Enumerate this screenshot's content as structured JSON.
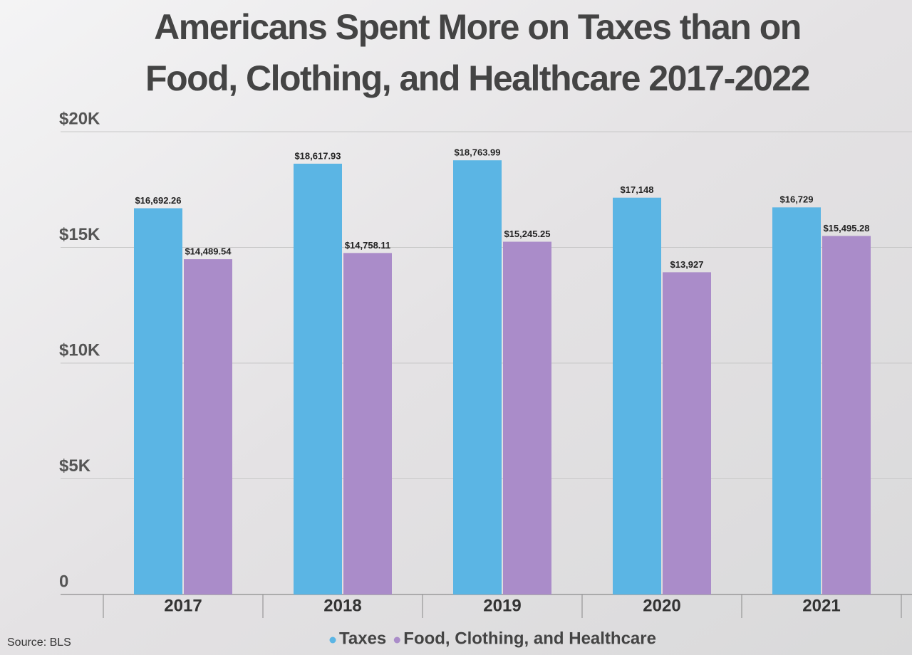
{
  "chart_data": {
    "type": "bar",
    "title": "Americans Spent More on Taxes than on",
    "subtitle": "Food, Clothing, and Healthcare 2017-2022",
    "categories": [
      "2017",
      "2018",
      "2019",
      "2020",
      "2021"
    ],
    "series": [
      {
        "name": "Taxes",
        "color": "#5bb5e4",
        "values": [
          16692.26,
          18617.93,
          18763.99,
          17148,
          16729
        ],
        "value_labels": [
          "$16,692.26",
          "$18,617.93",
          "$18,763.99",
          "$17,148",
          "$16,729"
        ]
      },
      {
        "name": "Food, Clothing, and Healthcare",
        "color": "#aa8cc9",
        "values": [
          14489.54,
          14758.11,
          15245.25,
          13927,
          15495.28
        ],
        "value_labels": [
          "$14,489.54",
          "$14,758.11",
          "$15,245.25",
          "$13,927",
          "$15,495.28"
        ]
      }
    ],
    "ylim": [
      0,
      20000
    ],
    "yticks": [
      0,
      {
        "value": 5000,
        "label": "$5K"
      },
      {
        "value": 10000,
        "label": "$10K"
      },
      {
        "value": 15000,
        "label": "$15K"
      },
      {
        "value": 20000,
        "label": "$20K"
      }
    ],
    "grid": true,
    "source": "Source: BLS"
  }
}
